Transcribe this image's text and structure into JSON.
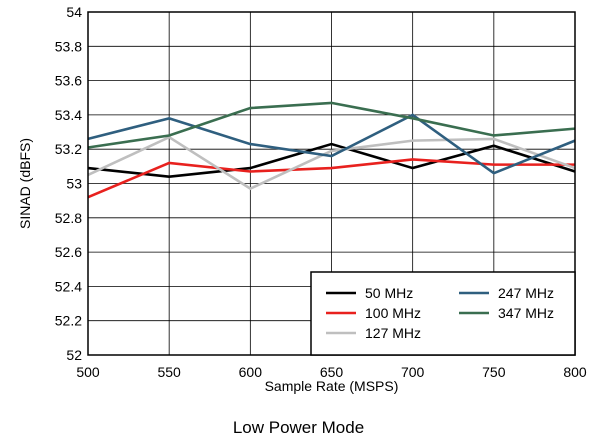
{
  "caption": "Low Power Mode",
  "chart_data": {
    "type": "line",
    "title": "",
    "xlabel": "Sample Rate (MSPS)",
    "ylabel": "SINAD (dBFS)",
    "x": [
      500,
      550,
      600,
      650,
      700,
      750,
      800
    ],
    "xlim": [
      500,
      800
    ],
    "ylim": [
      52,
      54
    ],
    "xticks": [
      "500",
      "550",
      "600",
      "650",
      "700",
      "750",
      "800"
    ],
    "yticks": [
      "52",
      "52.2",
      "52.4",
      "52.6",
      "52.8",
      "53",
      "53.2",
      "53.4",
      "53.6",
      "53.8",
      "54"
    ],
    "grid": true,
    "legend_position": "bottom-right",
    "series": [
      {
        "name": "50 MHz",
        "color": "#000000",
        "values": [
          53.09,
          53.04,
          53.09,
          53.23,
          53.09,
          53.22,
          53.07
        ]
      },
      {
        "name": "100 MHz",
        "color": "#e8211e",
        "values": [
          52.92,
          53.12,
          53.07,
          53.09,
          53.14,
          53.11,
          53.11
        ]
      },
      {
        "name": "127 MHz",
        "color": "#bfbfbf",
        "values": [
          53.05,
          53.27,
          52.97,
          53.19,
          53.25,
          53.26,
          53.09
        ]
      },
      {
        "name": "247 MHz",
        "color": "#2f5f7f",
        "values": [
          53.26,
          53.38,
          53.23,
          53.16,
          53.4,
          53.06,
          53.25
        ]
      },
      {
        "name": "347 MHz",
        "color": "#3a6e50",
        "values": [
          53.21,
          53.28,
          53.44,
          53.47,
          53.38,
          53.28,
          53.32
        ]
      }
    ]
  }
}
